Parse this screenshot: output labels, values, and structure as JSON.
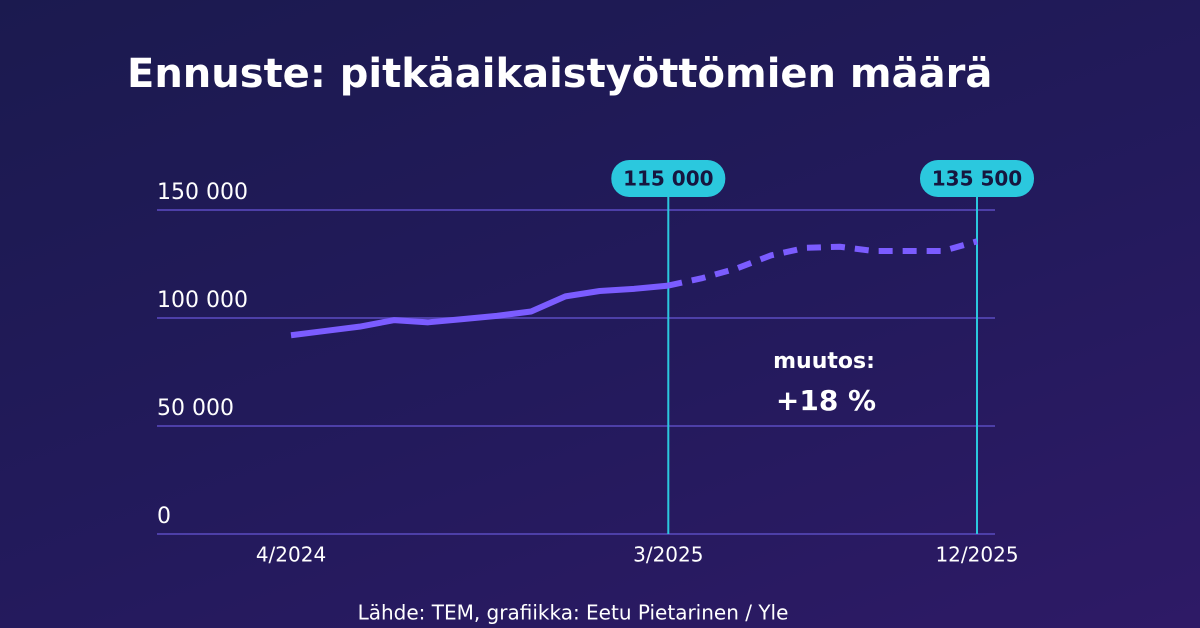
{
  "chart_data": {
    "type": "line",
    "title": "Ennuste: pitkäaikaistyöttömien määrä",
    "categories": [
      "4/2024",
      null,
      null,
      null,
      null,
      null,
      null,
      null,
      null,
      null,
      null,
      "3/2025",
      null,
      null,
      null,
      null,
      null,
      null,
      null,
      null,
      "12/2025"
    ],
    "series": [
      {
        "color": "#7b5cff",
        "dashed": false,
        "values": [
          92000,
          94000,
          96000,
          99000,
          98000,
          99500,
          101000,
          103000,
          110000,
          112500,
          113500,
          115000,
          null,
          null,
          null,
          null,
          null,
          null,
          null,
          null,
          null
        ]
      },
      {
        "color": "#7b5cff",
        "dashed": true,
        "values": [
          null,
          null,
          null,
          null,
          null,
          null,
          null,
          null,
          null,
          null,
          null,
          115000,
          118500,
          123000,
          129000,
          132500,
          133000,
          131000,
          131000,
          131000,
          135500
        ]
      }
    ],
    "callouts": [
      {
        "x": "3/2025",
        "value": 115000,
        "label": "115 000",
        "color": "#2bc8de"
      },
      {
        "x": "12/2025",
        "value": 135500,
        "label": "135 500",
        "color": "#2bc8de"
      }
    ],
    "annotation": {
      "heading": "muutos:",
      "text": "+18 %"
    },
    "ylim": [
      0,
      150000
    ],
    "yticks": [
      0,
      {
        "value": 50000,
        "label": "50 000"
      },
      {
        "value": 100000,
        "label": "100 000"
      },
      {
        "value": 150000,
        "label": "150 000"
      }
    ],
    "grid": true,
    "source": "Lähde: TEM, grafiikka: Eetu Pietarinen / Yle"
  }
}
